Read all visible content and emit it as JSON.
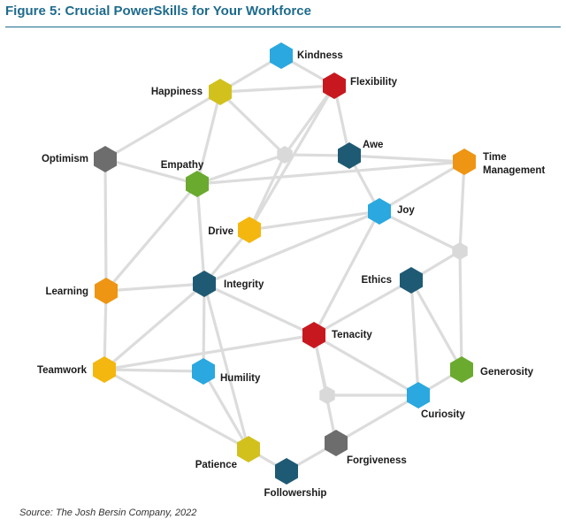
{
  "figure": {
    "title": "Figure 5: Crucial PowerSkills for Your Workforce",
    "source": "Source: The Josh Bersin Company, 2022"
  },
  "colors": {
    "blue": "#2aa8df",
    "red": "#c8181f",
    "yellow": "#d2c11c",
    "gold": "#f4b70f",
    "gray": "#6d6d6d",
    "green": "#6aaa2e",
    "navy": "#1f5a74",
    "orange": "#ee9513",
    "junction": "#d9d9d9",
    "edge": "#dcdcdc"
  },
  "nodes": [
    {
      "id": "kindness",
      "label": "Kindness",
      "color": "blue"
    },
    {
      "id": "flexibility",
      "label": "Flexibility",
      "color": "red"
    },
    {
      "id": "happiness",
      "label": "Happiness",
      "color": "yellow"
    },
    {
      "id": "awe",
      "label": "Awe",
      "color": "navy"
    },
    {
      "id": "time",
      "label": "Time Management",
      "color": "orange"
    },
    {
      "id": "optimism",
      "label": "Optimism",
      "color": "gray"
    },
    {
      "id": "empathy",
      "label": "Empathy",
      "color": "green"
    },
    {
      "id": "joy",
      "label": "Joy",
      "color": "blue"
    },
    {
      "id": "drive",
      "label": "Drive",
      "color": "gold"
    },
    {
      "id": "ethics",
      "label": "Ethics",
      "color": "navy"
    },
    {
      "id": "learning",
      "label": "Learning",
      "color": "orange"
    },
    {
      "id": "integrity",
      "label": "Integrity",
      "color": "navy"
    },
    {
      "id": "tenacity",
      "label": "Tenacity",
      "color": "red"
    },
    {
      "id": "generosity",
      "label": "Generosity",
      "color": "green"
    },
    {
      "id": "teamwork",
      "label": "Teamwork",
      "color": "gold"
    },
    {
      "id": "humility",
      "label": "Humility",
      "color": "blue"
    },
    {
      "id": "curiosity",
      "label": "Curiosity",
      "color": "blue"
    },
    {
      "id": "forgiveness",
      "label": "Forgiveness",
      "color": "gray"
    },
    {
      "id": "patience",
      "label": "Patience",
      "color": "yellow"
    },
    {
      "id": "followership",
      "label": "Followership",
      "color": "navy"
    },
    {
      "id": "j1",
      "label": "",
      "color": "junction"
    },
    {
      "id": "j2",
      "label": "",
      "color": "junction"
    },
    {
      "id": "j3",
      "label": "",
      "color": "junction"
    }
  ],
  "edges": [
    [
      "kindness",
      "happiness"
    ],
    [
      "kindness",
      "flexibility"
    ],
    [
      "happiness",
      "flexibility"
    ],
    [
      "happiness",
      "optimism"
    ],
    [
      "happiness",
      "empathy"
    ],
    [
      "happiness",
      "j1"
    ],
    [
      "flexibility",
      "awe"
    ],
    [
      "flexibility",
      "j1"
    ],
    [
      "flexibility",
      "drive"
    ],
    [
      "j1",
      "awe"
    ],
    [
      "j1",
      "empathy"
    ],
    [
      "j1",
      "drive"
    ],
    [
      "awe",
      "time"
    ],
    [
      "awe",
      "joy"
    ],
    [
      "time",
      "empathy"
    ],
    [
      "time",
      "joy"
    ],
    [
      "time",
      "j2"
    ],
    [
      "optimism",
      "empathy"
    ],
    [
      "optimism",
      "learning"
    ],
    [
      "empathy",
      "learning"
    ],
    [
      "empathy",
      "integrity"
    ],
    [
      "drive",
      "joy"
    ],
    [
      "drive",
      "integrity"
    ],
    [
      "joy",
      "integrity"
    ],
    [
      "joy",
      "tenacity"
    ],
    [
      "joy",
      "j2"
    ],
    [
      "j2",
      "ethics"
    ],
    [
      "j2",
      "generosity"
    ],
    [
      "ethics",
      "tenacity"
    ],
    [
      "ethics",
      "generosity"
    ],
    [
      "ethics",
      "curiosity"
    ],
    [
      "learning",
      "integrity"
    ],
    [
      "learning",
      "teamwork"
    ],
    [
      "integrity",
      "tenacity"
    ],
    [
      "integrity",
      "teamwork"
    ],
    [
      "integrity",
      "humility"
    ],
    [
      "integrity",
      "patience"
    ],
    [
      "tenacity",
      "teamwork"
    ],
    [
      "tenacity",
      "curiosity"
    ],
    [
      "tenacity",
      "j3"
    ],
    [
      "tenacity",
      "forgiveness"
    ],
    [
      "generosity",
      "curiosity"
    ],
    [
      "teamwork",
      "humility"
    ],
    [
      "teamwork",
      "patience"
    ],
    [
      "humility",
      "patience"
    ],
    [
      "j3",
      "curiosity"
    ],
    [
      "curiosity",
      "forgiveness"
    ],
    [
      "forgiveness",
      "followership"
    ],
    [
      "patience",
      "followership"
    ]
  ]
}
